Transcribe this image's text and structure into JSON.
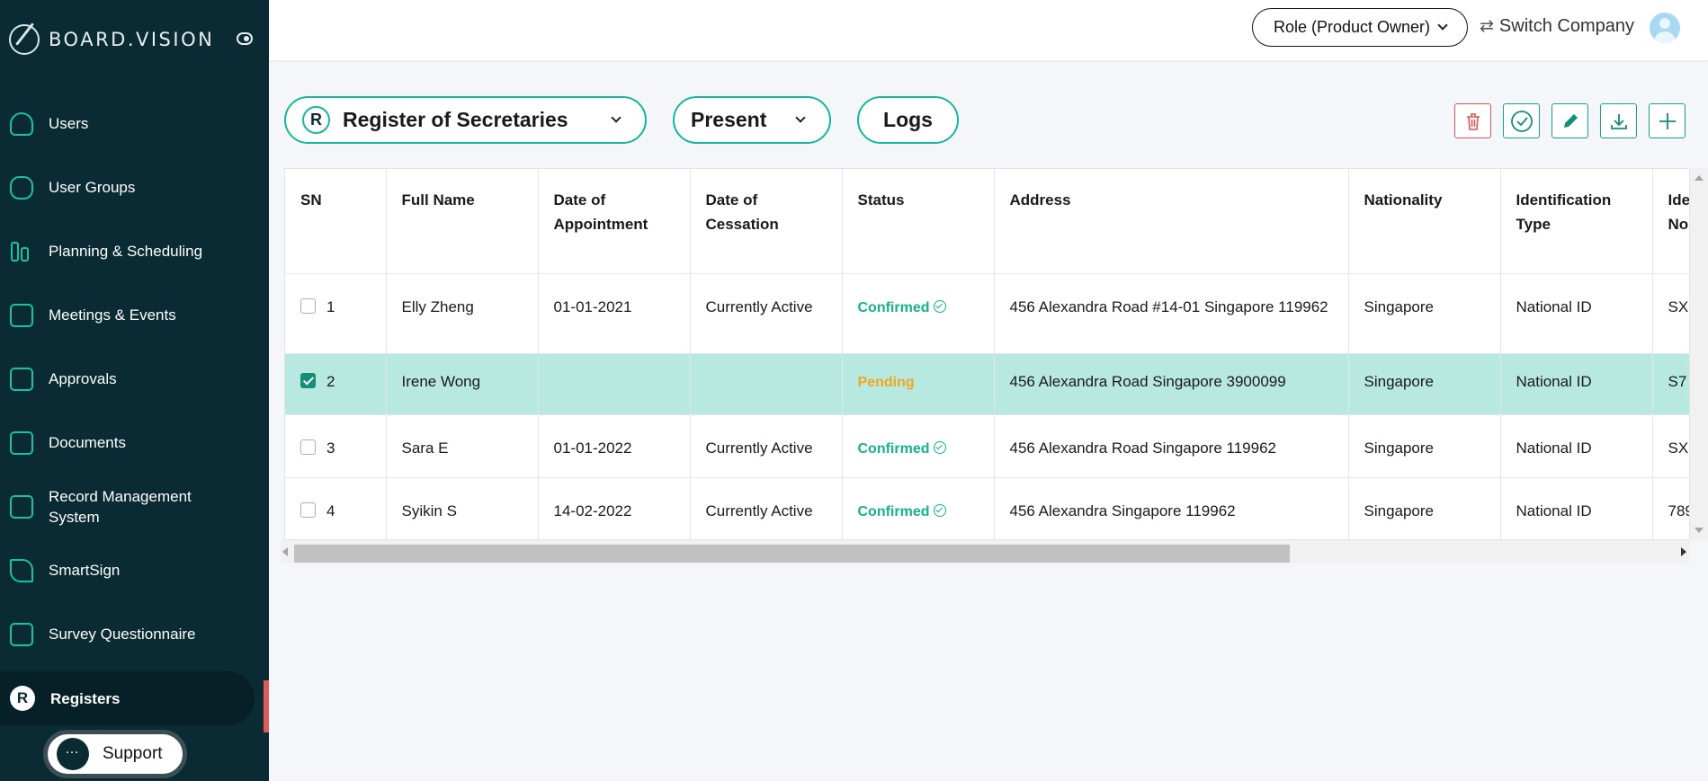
{
  "app": {
    "logo_text": "BOARD.VISION"
  },
  "sidebar": {
    "items": [
      {
        "label": "Users",
        "icon": "user-icon"
      },
      {
        "label": "User Groups",
        "icon": "user-group-icon"
      },
      {
        "label": "Planning & Scheduling",
        "icon": "bar-chart-icon"
      },
      {
        "label": "Meetings & Events",
        "icon": "calendar-icon"
      },
      {
        "label": "Approvals",
        "icon": "approvals-icon"
      },
      {
        "label": "Documents",
        "icon": "documents-icon"
      },
      {
        "label": "Record Management System",
        "icon": "record-icon"
      },
      {
        "label": "SmartSign",
        "icon": "pen-icon"
      },
      {
        "label": "Survey Questionnaire",
        "icon": "survey-icon"
      },
      {
        "label": "Registers",
        "icon": "registers-icon",
        "icon_letter": "R",
        "active": true
      }
    ],
    "support_label": "Support"
  },
  "header": {
    "role_label": "Role (Product Owner)",
    "switch_label": "Switch Company"
  },
  "toolbar": {
    "register_icon_letter": "R",
    "register_select": "Register of Secretaries",
    "period_select": "Present",
    "logs_label": "Logs",
    "actions": [
      "trash-icon",
      "check-circle-icon",
      "pencil-icon",
      "download-icon",
      "plus-icon"
    ]
  },
  "table": {
    "columns": [
      "SN",
      "Full Name",
      "Date of Appointment",
      "Date of Cessation",
      "Status",
      "Address",
      "Nationality",
      "Identification Type",
      "Identification No"
    ],
    "rows": [
      {
        "sn": "1",
        "checked": false,
        "name": "Elly Zheng",
        "appointment": "01-01-2021",
        "cessation": "Currently Active",
        "status": "Confirmed",
        "address": "456 Alexandra Road #14-01 Singapore 119962",
        "nationality": "Singapore",
        "id_type": "National ID",
        "id_no": "SX"
      },
      {
        "sn": "2",
        "checked": true,
        "name": "Irene Wong",
        "appointment": "",
        "cessation": "",
        "status": "Pending",
        "address": "456 Alexandra Road Singapore 3900099",
        "nationality": "Singapore",
        "id_type": "National ID",
        "id_no": "S7"
      },
      {
        "sn": "3",
        "checked": false,
        "name": "Sara E",
        "appointment": "01-01-2022",
        "cessation": "Currently Active",
        "status": "Confirmed",
        "address": "456 Alexandra Road Singapore 119962",
        "nationality": "Singapore",
        "id_type": "National ID",
        "id_no": "SX"
      },
      {
        "sn": "4",
        "checked": false,
        "name": "Syikin S",
        "appointment": "14-02-2022",
        "cessation": "Currently Active",
        "status": "Confirmed",
        "address": "456 Alexandra Singapore 119962",
        "nationality": "Singapore",
        "id_type": "National ID",
        "id_no": "789"
      }
    ]
  },
  "colors": {
    "sidebar_bg": "#0a2b34",
    "accent": "#16b89c",
    "selected_row": "#b7e9e0",
    "confirmed": "#15b38f",
    "pending": "#f0a81d",
    "danger": "#e25555"
  }
}
